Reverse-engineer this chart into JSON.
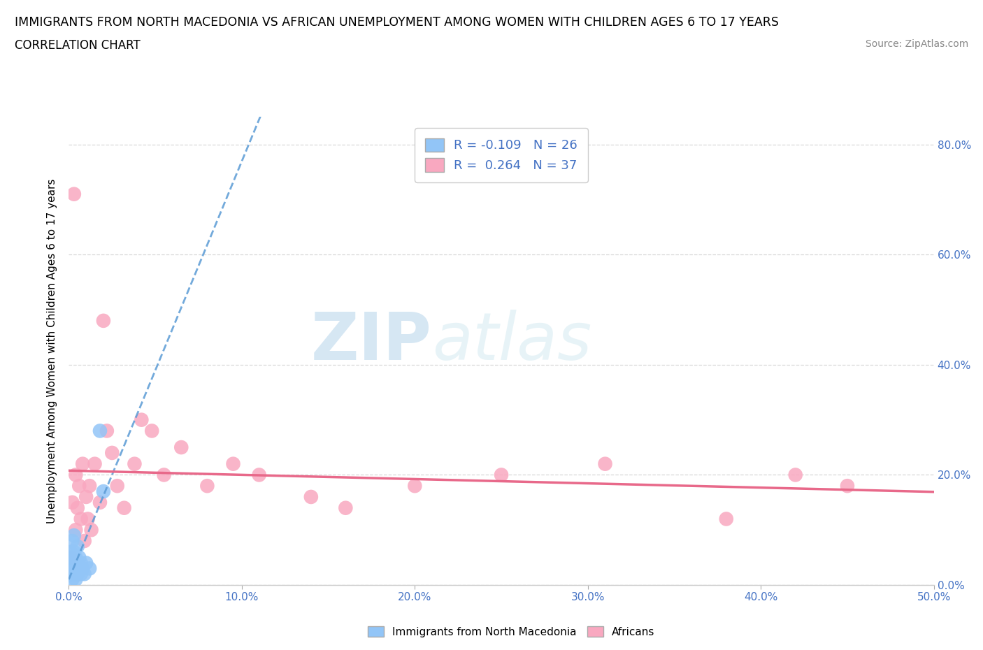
{
  "title": "IMMIGRANTS FROM NORTH MACEDONIA VS AFRICAN UNEMPLOYMENT AMONG WOMEN WITH CHILDREN AGES 6 TO 17 YEARS",
  "subtitle": "CORRELATION CHART",
  "source": "Source: ZipAtlas.com",
  "ylabel": "Unemployment Among Women with Children Ages 6 to 17 years",
  "xlim": [
    0.0,
    0.5
  ],
  "ylim": [
    0.0,
    0.85
  ],
  "xticks": [
    0.0,
    0.1,
    0.2,
    0.3,
    0.4,
    0.5
  ],
  "yticks": [
    0.0,
    0.2,
    0.4,
    0.6,
    0.8
  ],
  "ytick_labels_right": [
    "0.0%",
    "20.0%",
    "40.0%",
    "60.0%",
    "80.0%"
  ],
  "xtick_labels": [
    "0.0%",
    "10.0%",
    "20.0%",
    "30.0%",
    "40.0%",
    "50.0%"
  ],
  "legend1_R": "-0.109",
  "legend1_N": "26",
  "legend2_R": "0.264",
  "legend2_N": "37",
  "blue_color": "#92C5F7",
  "pink_color": "#F9A8C0",
  "blue_line_color": "#5b9bd5",
  "pink_line_color": "#e8698a",
  "watermark_zip": "ZIP",
  "watermark_atlas": "atlas",
  "blue_scatter_x": [
    0.001,
    0.001,
    0.001,
    0.002,
    0.002,
    0.002,
    0.002,
    0.003,
    0.003,
    0.003,
    0.003,
    0.004,
    0.004,
    0.004,
    0.005,
    0.005,
    0.006,
    0.006,
    0.007,
    0.007,
    0.008,
    0.009,
    0.01,
    0.012,
    0.018,
    0.02
  ],
  "blue_scatter_y": [
    0.02,
    0.04,
    0.06,
    0.01,
    0.03,
    0.05,
    0.08,
    0.02,
    0.04,
    0.06,
    0.09,
    0.01,
    0.03,
    0.05,
    0.02,
    0.07,
    0.03,
    0.05,
    0.02,
    0.04,
    0.03,
    0.02,
    0.04,
    0.03,
    0.28,
    0.17
  ],
  "pink_scatter_x": [
    0.001,
    0.002,
    0.003,
    0.004,
    0.004,
    0.005,
    0.006,
    0.007,
    0.008,
    0.009,
    0.01,
    0.011,
    0.012,
    0.013,
    0.015,
    0.018,
    0.02,
    0.022,
    0.025,
    0.028,
    0.032,
    0.038,
    0.042,
    0.048,
    0.055,
    0.065,
    0.08,
    0.095,
    0.11,
    0.14,
    0.16,
    0.2,
    0.25,
    0.31,
    0.38,
    0.42,
    0.45
  ],
  "pink_scatter_y": [
    0.05,
    0.15,
    0.71,
    0.2,
    0.1,
    0.14,
    0.18,
    0.12,
    0.22,
    0.08,
    0.16,
    0.12,
    0.18,
    0.1,
    0.22,
    0.15,
    0.48,
    0.28,
    0.24,
    0.18,
    0.14,
    0.22,
    0.3,
    0.28,
    0.2,
    0.25,
    0.18,
    0.22,
    0.2,
    0.16,
    0.14,
    0.18,
    0.2,
    0.22,
    0.12,
    0.2,
    0.18
  ],
  "background_color": "#ffffff",
  "grid_color": "#d8d8d8"
}
